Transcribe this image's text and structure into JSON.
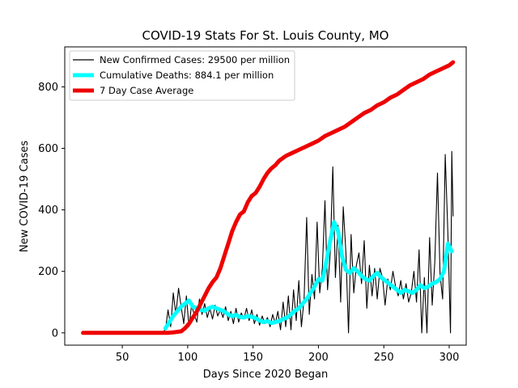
{
  "chart_data": {
    "type": "line",
    "title": "COVID-19 Stats For St. Louis County, MO",
    "xlabel": "Days Since 2020 Began",
    "ylabel": "New COVID-19 Cases",
    "xlim": [
      6,
      313
    ],
    "ylim": [
      -40,
      930
    ],
    "xticks": [
      50,
      100,
      150,
      200,
      250,
      300
    ],
    "yticks": [
      0,
      200,
      400,
      600,
      800
    ],
    "grid": false,
    "legend_position": "top-left",
    "series": [
      {
        "name": "New Confirmed Cases: 29500 per million",
        "color": "#000000",
        "x": [
          80,
          83,
          85,
          87,
          89,
          91,
          93,
          95,
          97,
          99,
          101,
          103,
          105,
          107,
          109,
          111,
          113,
          115,
          117,
          119,
          121,
          123,
          125,
          127,
          129,
          131,
          133,
          135,
          137,
          139,
          141,
          143,
          145,
          147,
          149,
          151,
          153,
          155,
          157,
          159,
          161,
          163,
          165,
          167,
          169,
          171,
          173,
          175,
          177,
          179,
          181,
          183,
          185,
          187,
          189,
          191,
          193,
          195,
          197,
          199,
          201,
          203,
          205,
          207,
          209,
          211,
          213,
          215,
          217,
          219,
          221,
          223,
          225,
          227,
          229,
          231,
          233,
          235,
          237,
          239,
          241,
          243,
          245,
          247,
          249,
          251,
          253,
          255,
          257,
          259,
          261,
          263,
          265,
          267,
          269,
          271,
          273,
          275,
          277,
          279,
          281,
          283,
          285,
          287,
          289,
          291,
          293,
          295,
          297,
          299,
          301,
          302,
          303
        ],
        "values": [
          0,
          10,
          75,
          20,
          130,
          60,
          145,
          85,
          30,
          120,
          20,
          90,
          60,
          35,
          110,
          60,
          95,
          50,
          80,
          45,
          90,
          55,
          75,
          50,
          85,
          40,
          70,
          30,
          80,
          35,
          65,
          45,
          80,
          40,
          75,
          30,
          60,
          25,
          55,
          30,
          50,
          20,
          60,
          30,
          70,
          10,
          100,
          20,
          120,
          10,
          140,
          40,
          170,
          20,
          110,
          375,
          60,
          190,
          110,
          360,
          130,
          210,
          430,
          140,
          260,
          540,
          180,
          350,
          100,
          410,
          260,
          0,
          320,
          130,
          220,
          260,
          160,
          300,
          80,
          220,
          120,
          210,
          110,
          210,
          180,
          90,
          175,
          140,
          200,
          150,
          120,
          170,
          110,
          160,
          100,
          130,
          200,
          100,
          270,
          0,
          180,
          0,
          310,
          90,
          230,
          520,
          190,
          110,
          580,
          320,
          0,
          590,
          380
        ]
      },
      {
        "name": "Cumulative Deaths: 884.1 per million",
        "color": "#00ffff",
        "x": [
          83,
          86,
          89,
          92,
          95,
          98,
          101,
          104,
          107,
          110,
          113,
          116,
          119,
          122,
          125,
          128,
          131,
          134,
          137,
          140,
          143,
          146,
          149,
          152,
          155,
          158,
          161,
          164,
          167,
          170,
          173,
          176,
          179,
          182,
          185,
          188,
          191,
          194,
          197,
          200,
          203,
          206,
          209,
          212,
          215,
          218,
          221,
          224,
          227,
          230,
          233,
          236,
          239,
          242,
          245,
          248,
          251,
          254,
          257,
          260,
          263,
          266,
          269,
          272,
          275,
          278,
          281,
          284,
          287,
          290,
          293,
          296,
          299,
          302
        ],
        "values": [
          15,
          35,
          55,
          70,
          85,
          95,
          105,
          85,
          80,
          75,
          72,
          80,
          85,
          80,
          75,
          70,
          60,
          55,
          58,
          52,
          50,
          55,
          52,
          48,
          40,
          35,
          38,
          32,
          35,
          38,
          45,
          50,
          60,
          72,
          80,
          95,
          110,
          130,
          150,
          175,
          170,
          230,
          300,
          360,
          330,
          250,
          205,
          195,
          210,
          200,
          185,
          175,
          170,
          185,
          195,
          180,
          170,
          160,
          150,
          140,
          130,
          140,
          135,
          130,
          140,
          155,
          145,
          150,
          160,
          165,
          175,
          200,
          290,
          265
        ]
      },
      {
        "name": "7 Day Case Average",
        "color": "#ee0000",
        "x": [
          20,
          30,
          40,
          50,
          60,
          70,
          80,
          85,
          90,
          95,
          98,
          101,
          104,
          107,
          110,
          113,
          116,
          119,
          122,
          125,
          128,
          131,
          134,
          137,
          140,
          143,
          146,
          149,
          152,
          155,
          158,
          161,
          164,
          167,
          170,
          175,
          180,
          185,
          190,
          195,
          200,
          205,
          210,
          215,
          220,
          225,
          230,
          235,
          240,
          245,
          250,
          255,
          260,
          265,
          270,
          275,
          280,
          285,
          290,
          295,
          300,
          303
        ],
        "values": [
          0,
          0,
          0,
          0,
          0,
          0,
          0,
          0,
          2,
          5,
          15,
          30,
          50,
          70,
          95,
          120,
          145,
          165,
          180,
          210,
          250,
          290,
          330,
          360,
          385,
          395,
          425,
          445,
          455,
          475,
          500,
          520,
          535,
          545,
          560,
          575,
          585,
          595,
          605,
          615,
          625,
          640,
          650,
          660,
          670,
          685,
          700,
          715,
          725,
          740,
          750,
          765,
          775,
          790,
          805,
          815,
          825,
          840,
          850,
          860,
          870,
          880
        ]
      }
    ]
  }
}
